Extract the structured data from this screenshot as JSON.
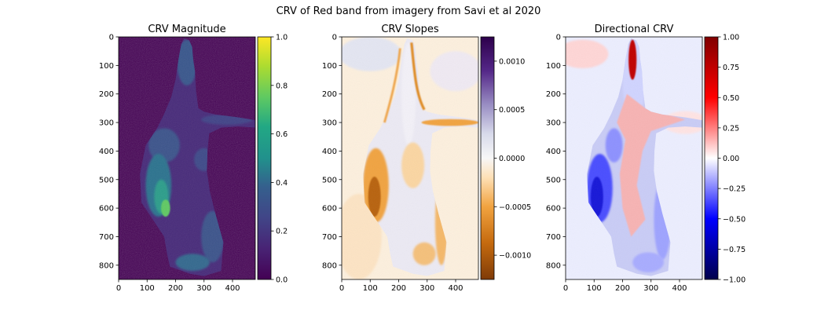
{
  "figure": {
    "suptitle": "CRV of Red band from imagery from Savi et al 2020"
  },
  "chart_data": [
    {
      "type": "heatmap",
      "title": "CRV Magnitude",
      "colormap": "viridis",
      "x_range": [
        0,
        480
      ],
      "y_range": [
        850,
        0
      ],
      "x_ticks": [
        0,
        100,
        200,
        300,
        400
      ],
      "y_ticks": [
        0,
        100,
        200,
        300,
        400,
        500,
        600,
        700,
        800
      ],
      "colorbar": {
        "range": [
          0.0,
          1.0
        ],
        "ticks": [
          "0.0",
          "0.2",
          "0.4",
          "0.6",
          "0.8",
          "1.0"
        ],
        "tick_values": [
          0.0,
          0.2,
          0.4,
          0.6,
          0.8,
          1.0
        ]
      }
    },
    {
      "type": "heatmap",
      "title": "CRV Slopes",
      "colormap": "PuOr",
      "x_range": [
        0,
        480
      ],
      "y_range": [
        850,
        0
      ],
      "x_ticks": [
        0,
        100,
        200,
        300,
        400
      ],
      "y_ticks": [
        0,
        100,
        200,
        300,
        400,
        500,
        600,
        700,
        800
      ],
      "colorbar": {
        "range": [
          -0.00125,
          0.00125
        ],
        "ticks": [
          "0.0010",
          "0.0005",
          "0.0000",
          "−0.0005",
          "−0.0010"
        ],
        "tick_values": [
          0.001,
          0.0005,
          0.0,
          -0.0005,
          -0.001
        ]
      }
    },
    {
      "type": "heatmap",
      "title": "Directional CRV",
      "colormap": "seismic",
      "x_range": [
        0,
        480
      ],
      "y_range": [
        850,
        0
      ],
      "x_ticks": [
        0,
        100,
        200,
        300,
        400
      ],
      "y_ticks": [
        0,
        100,
        200,
        300,
        400,
        500,
        600,
        700,
        800
      ],
      "colorbar": {
        "range": [
          -1.0,
          1.0
        ],
        "ticks": [
          "1.00",
          "0.75",
          "0.50",
          "0.25",
          "0.00",
          "−0.25",
          "−0.50",
          "−0.75",
          "−1.00"
        ],
        "tick_values": [
          1.0,
          0.75,
          0.5,
          0.25,
          0.0,
          -0.25,
          -0.5,
          -0.75,
          -1.0
        ]
      }
    }
  ]
}
